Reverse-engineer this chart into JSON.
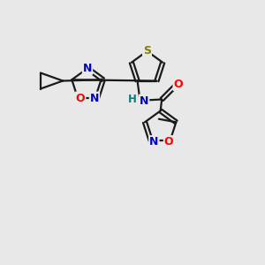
{
  "background_color": "#e8e8e8",
  "bond_color": "#1a1a1a",
  "atom_colors": {
    "S": "#808000",
    "N": "#0000cc",
    "O": "#ff0000",
    "H": "#008080",
    "C": "#1a1a1a"
  },
  "figsize": [
    3.0,
    3.0
  ],
  "dpi": 100,
  "lw": 1.6,
  "fontsize": 9.0
}
